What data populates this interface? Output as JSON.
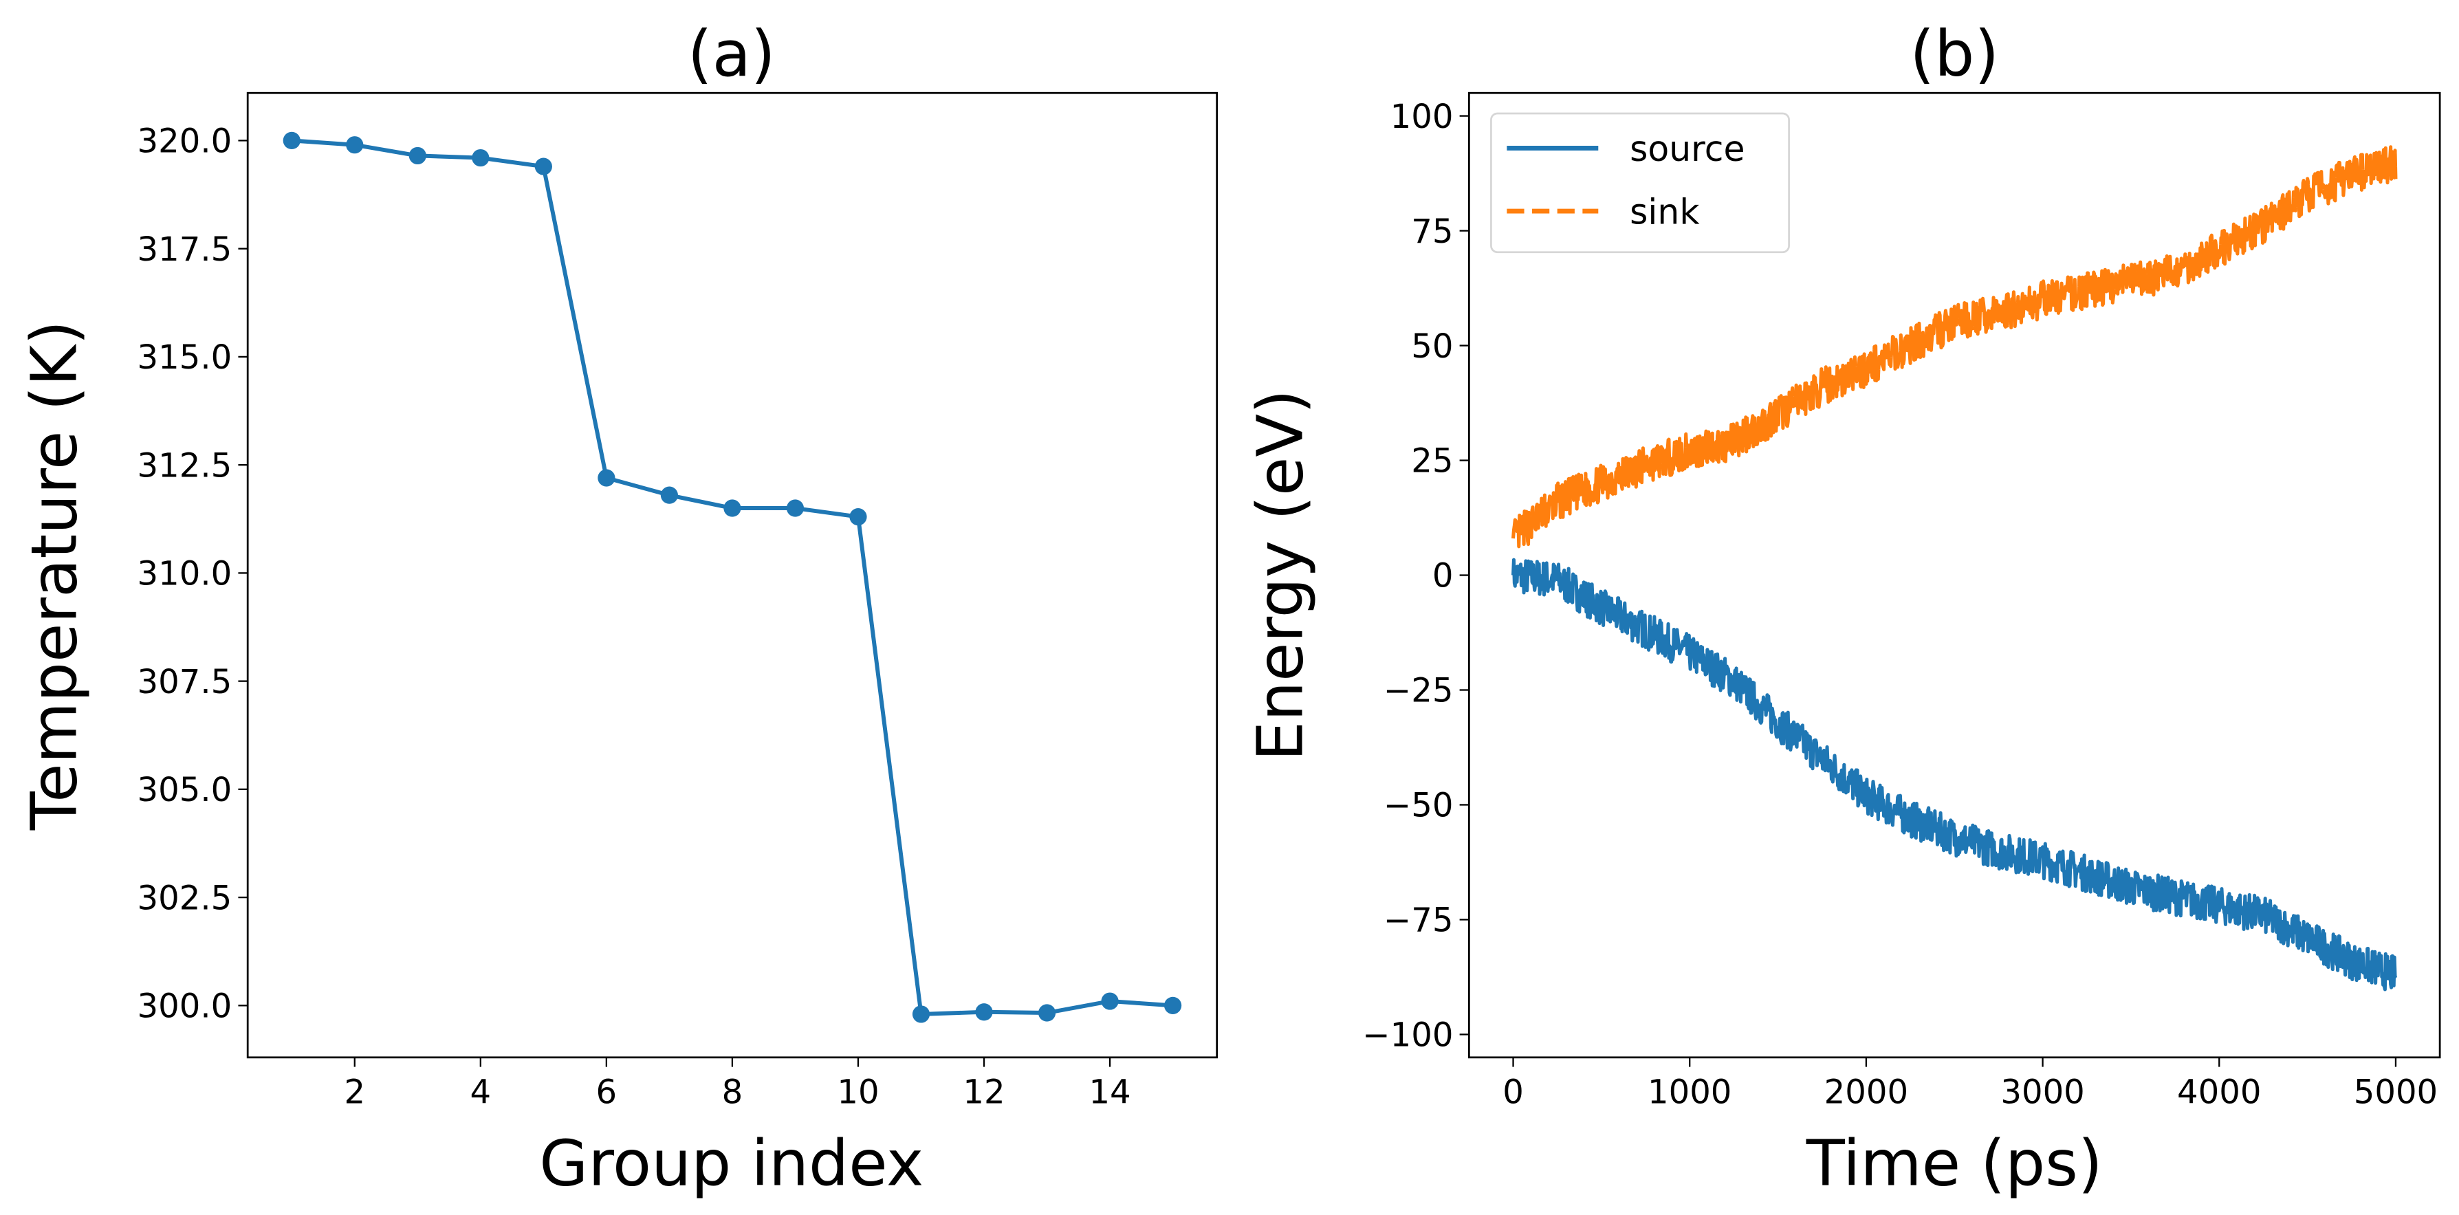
{
  "chart_data": [
    {
      "type": "line",
      "panel": "a",
      "title": "(a)",
      "xlabel": "Group index",
      "ylabel": "Temperature (K)",
      "xlim": [
        0.3,
        15.7
      ],
      "ylim": [
        298.8,
        321.1
      ],
      "xticks": [
        2,
        4,
        6,
        8,
        10,
        12,
        14
      ],
      "xtick_labels": [
        "2",
        "4",
        "6",
        "8",
        "10",
        "12",
        "14"
      ],
      "yticks": [
        300.0,
        302.5,
        305.0,
        307.5,
        310.0,
        312.5,
        315.0,
        317.5,
        320.0
      ],
      "ytick_labels": [
        "300.0",
        "302.5",
        "305.0",
        "307.5",
        "310.0",
        "312.5",
        "315.0",
        "317.5",
        "320.0"
      ],
      "grid": false,
      "series": [
        {
          "name": "temperature",
          "color": "#1f77b4",
          "marker": "circle",
          "x": [
            1,
            2,
            3,
            4,
            5,
            6,
            7,
            8,
            9,
            10,
            11,
            12,
            13,
            14,
            15
          ],
          "values": [
            320.0,
            319.9,
            319.65,
            319.6,
            319.4,
            312.2,
            311.8,
            311.5,
            311.5,
            311.3,
            299.8,
            299.85,
            299.83,
            300.1,
            300.0
          ]
        }
      ]
    },
    {
      "type": "line",
      "panel": "b",
      "title": "(b)",
      "xlabel": "Time (ps)",
      "ylabel": "Energy (eV)",
      "xlim": [
        -250,
        5250
      ],
      "ylim": [
        -105,
        105
      ],
      "xticks": [
        0,
        1000,
        2000,
        3000,
        4000,
        5000
      ],
      "xtick_labels": [
        "0",
        "1000",
        "2000",
        "3000",
        "4000",
        "5000"
      ],
      "yticks": [
        -100,
        -75,
        -50,
        -25,
        0,
        25,
        50,
        75,
        100
      ],
      "ytick_labels": [
        "−100",
        "−75",
        "−50",
        "−25",
        "0",
        "25",
        "50",
        "75",
        "100"
      ],
      "grid": false,
      "legend": {
        "position": "top-left",
        "entries": [
          "source",
          "sink"
        ]
      },
      "series": [
        {
          "name": "source",
          "color": "#1f77b4",
          "linestyle": "solid",
          "noise_amplitude": 4,
          "x": [
            0,
            250,
            500,
            750,
            1000,
            1250,
            1500,
            1750,
            2000,
            2250,
            2500,
            2750,
            3000,
            3250,
            3500,
            3750,
            4000,
            4250,
            4500,
            4750,
            5000
          ],
          "values": [
            0,
            -1,
            -7,
            -12,
            -17,
            -23,
            -32,
            -40,
            -48,
            -53,
            -57,
            -60,
            -62,
            -65,
            -68,
            -70,
            -72,
            -74,
            -79,
            -84,
            -87
          ]
        },
        {
          "name": "sink",
          "color": "#ff7f0e",
          "linestyle": "dashed",
          "noise_amplitude": 4,
          "x": [
            0,
            250,
            500,
            750,
            1000,
            1250,
            1500,
            1750,
            2000,
            2250,
            2500,
            2750,
            3000,
            3250,
            3500,
            3750,
            4000,
            4250,
            4500,
            4750,
            5000
          ],
          "values": [
            8,
            16,
            20,
            24,
            27,
            29,
            35,
            41,
            45,
            50,
            55,
            57,
            60,
            62,
            64,
            66,
            71,
            76,
            83,
            87,
            90
          ]
        }
      ]
    }
  ]
}
